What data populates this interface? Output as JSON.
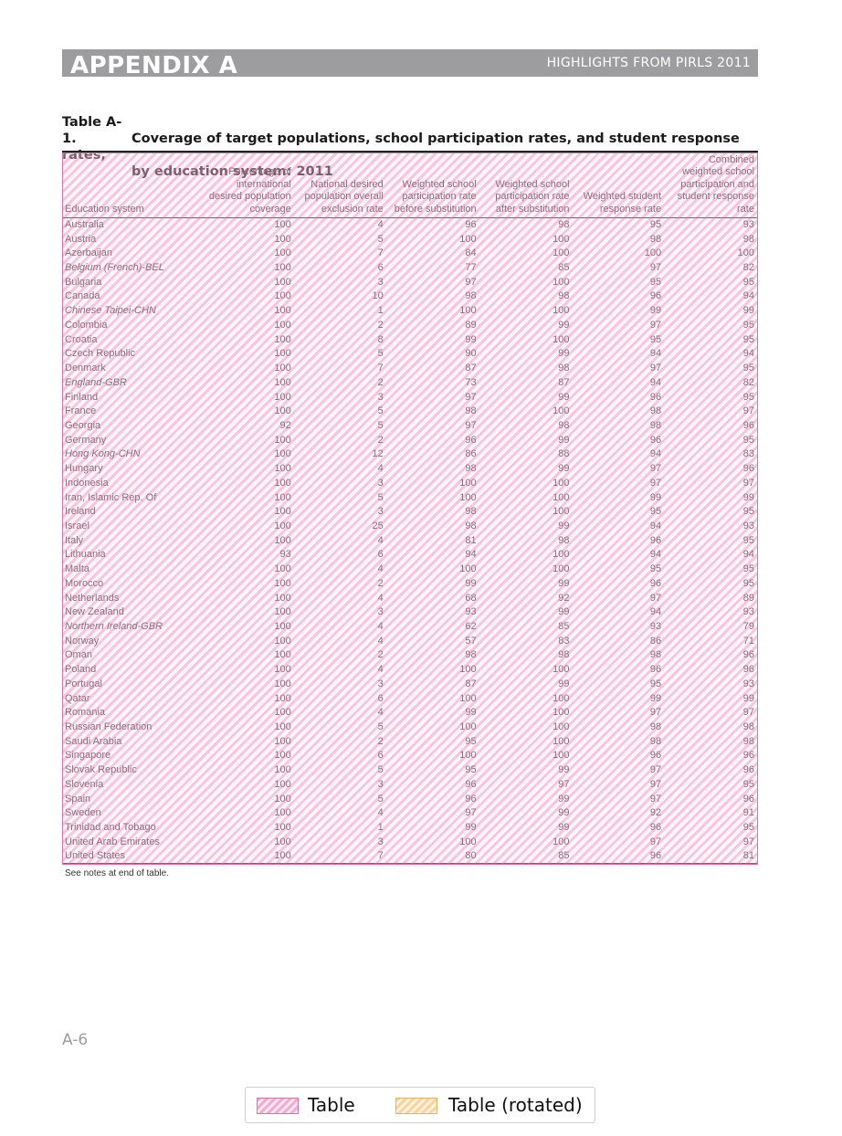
{
  "header": {
    "left": "APPENDIX A",
    "right": "HIGHLIGHTS FROM PIRLS 2011"
  },
  "caption": {
    "number": "Table A-1.",
    "line1": "Coverage of target populations, school participation rates, and student response rates,",
    "line2": "by education system: 2011"
  },
  "table": {
    "columns": [
      "Education system",
      "Percentage of international desired population coverage",
      "National desired population overall exclusion rate",
      "Weighted school participation rate before substitution",
      "Weighted school participation rate after substitution",
      "Weighted student response rate",
      "Combined weighted school participation and student response rate"
    ],
    "rows": [
      {
        "name": "Australia",
        "italic": false,
        "values": [
          "100",
          "4",
          "96",
          "98",
          "95",
          "93"
        ]
      },
      {
        "name": "Austria",
        "italic": false,
        "values": [
          "100",
          "5",
          "100",
          "100",
          "98",
          "98"
        ]
      },
      {
        "name": "Azerbaijan",
        "italic": false,
        "values": [
          "100",
          "7",
          "84",
          "100",
          "100",
          "100"
        ]
      },
      {
        "name": "Belgium (French)-BEL",
        "italic": true,
        "values": [
          "100",
          "6",
          "77",
          "85",
          "97",
          "82"
        ]
      },
      {
        "name": "Bulgaria",
        "italic": false,
        "values": [
          "100",
          "3",
          "97",
          "100",
          "95",
          "95"
        ]
      },
      {
        "name": "Canada",
        "italic": false,
        "values": [
          "100",
          "10",
          "98",
          "98",
          "96",
          "94"
        ]
      },
      {
        "name": "Chinese Taipei-CHN",
        "italic": true,
        "values": [
          "100",
          "1",
          "100",
          "100",
          "99",
          "99"
        ]
      },
      {
        "name": "Colombia",
        "italic": false,
        "values": [
          "100",
          "2",
          "89",
          "99",
          "97",
          "95"
        ]
      },
      {
        "name": "Croatia",
        "italic": false,
        "values": [
          "100",
          "8",
          "99",
          "100",
          "95",
          "95"
        ]
      },
      {
        "name": "Czech Republic",
        "italic": false,
        "values": [
          "100",
          "5",
          "90",
          "99",
          "94",
          "94"
        ]
      },
      {
        "name": "Denmark",
        "italic": false,
        "values": [
          "100",
          "7",
          "87",
          "98",
          "97",
          "95"
        ]
      },
      {
        "name": "England-GBR",
        "italic": true,
        "values": [
          "100",
          "2",
          "73",
          "87",
          "94",
          "82"
        ]
      },
      {
        "name": "Finland",
        "italic": false,
        "values": [
          "100",
          "3",
          "97",
          "99",
          "96",
          "95"
        ]
      },
      {
        "name": "France",
        "italic": false,
        "values": [
          "100",
          "5",
          "98",
          "100",
          "98",
          "97"
        ]
      },
      {
        "name": "Georgia",
        "italic": false,
        "values": [
          "92",
          "5",
          "97",
          "98",
          "98",
          "96"
        ]
      },
      {
        "name": "Germany",
        "italic": false,
        "values": [
          "100",
          "2",
          "96",
          "99",
          "96",
          "95"
        ]
      },
      {
        "name": "Hong Kong-CHN",
        "italic": true,
        "values": [
          "100",
          "12",
          "86",
          "88",
          "94",
          "83"
        ]
      },
      {
        "name": "Hungary",
        "italic": false,
        "values": [
          "100",
          "4",
          "98",
          "99",
          "97",
          "96"
        ]
      },
      {
        "name": "Indonesia",
        "italic": false,
        "values": [
          "100",
          "3",
          "100",
          "100",
          "97",
          "97"
        ]
      },
      {
        "name": "Iran, Islamic Rep. Of",
        "italic": false,
        "values": [
          "100",
          "5",
          "100",
          "100",
          "99",
          "99"
        ]
      },
      {
        "name": "Ireland",
        "italic": false,
        "values": [
          "100",
          "3",
          "98",
          "100",
          "95",
          "95"
        ]
      },
      {
        "name": "Israel",
        "italic": false,
        "values": [
          "100",
          "25",
          "98",
          "99",
          "94",
          "93"
        ]
      },
      {
        "name": "Italy",
        "italic": false,
        "values": [
          "100",
          "4",
          "81",
          "98",
          "96",
          "95"
        ]
      },
      {
        "name": "Lithuania",
        "italic": false,
        "values": [
          "93",
          "6",
          "94",
          "100",
          "94",
          "94"
        ]
      },
      {
        "name": "Malta",
        "italic": false,
        "values": [
          "100",
          "4",
          "100",
          "100",
          "95",
          "95"
        ]
      },
      {
        "name": "Morocco",
        "italic": false,
        "values": [
          "100",
          "2",
          "99",
          "99",
          "96",
          "95"
        ]
      },
      {
        "name": "Netherlands",
        "italic": false,
        "values": [
          "100",
          "4",
          "68",
          "92",
          "97",
          "89"
        ]
      },
      {
        "name": "New Zealand",
        "italic": false,
        "values": [
          "100",
          "3",
          "93",
          "99",
          "94",
          "93"
        ]
      },
      {
        "name": "Northern Ireland-GBR",
        "italic": true,
        "values": [
          "100",
          "4",
          "62",
          "85",
          "93",
          "79"
        ]
      },
      {
        "name": "Norway",
        "italic": false,
        "values": [
          "100",
          "4",
          "57",
          "83",
          "86",
          "71"
        ]
      },
      {
        "name": "Oman",
        "italic": false,
        "values": [
          "100",
          "2",
          "98",
          "98",
          "98",
          "96"
        ]
      },
      {
        "name": "Poland",
        "italic": false,
        "values": [
          "100",
          "4",
          "100",
          "100",
          "96",
          "96"
        ]
      },
      {
        "name": "Portugal",
        "italic": false,
        "values": [
          "100",
          "3",
          "87",
          "99",
          "95",
          "93"
        ]
      },
      {
        "name": "Qatar",
        "italic": false,
        "values": [
          "100",
          "6",
          "100",
          "100",
          "99",
          "99"
        ]
      },
      {
        "name": "Romania",
        "italic": false,
        "values": [
          "100",
          "4",
          "99",
          "100",
          "97",
          "97"
        ]
      },
      {
        "name": "Russian Federation",
        "italic": false,
        "values": [
          "100",
          "5",
          "100",
          "100",
          "98",
          "98"
        ]
      },
      {
        "name": "Saudi Arabia",
        "italic": false,
        "values": [
          "100",
          "2",
          "95",
          "100",
          "98",
          "98"
        ]
      },
      {
        "name": "Singapore",
        "italic": false,
        "values": [
          "100",
          "6",
          "100",
          "100",
          "96",
          "96"
        ]
      },
      {
        "name": "Slovak Republic",
        "italic": false,
        "values": [
          "100",
          "5",
          "95",
          "99",
          "97",
          "96"
        ]
      },
      {
        "name": "Slovenia",
        "italic": false,
        "values": [
          "100",
          "3",
          "96",
          "97",
          "97",
          "95"
        ]
      },
      {
        "name": "Spain",
        "italic": false,
        "values": [
          "100",
          "5",
          "96",
          "99",
          "97",
          "96"
        ]
      },
      {
        "name": "Sweden",
        "italic": false,
        "values": [
          "100",
          "4",
          "97",
          "99",
          "92",
          "91"
        ]
      },
      {
        "name": "Trinidad and Tobago",
        "italic": false,
        "values": [
          "100",
          "1",
          "99",
          "99",
          "96",
          "95"
        ]
      },
      {
        "name": "United Arab Emirates",
        "italic": false,
        "values": [
          "100",
          "3",
          "100",
          "100",
          "97",
          "97"
        ]
      },
      {
        "name": "United States",
        "italic": false,
        "values": [
          "100",
          "7",
          "80",
          "85",
          "96",
          "81"
        ]
      }
    ]
  },
  "note": "See notes at end of table.",
  "page_number": "A-6",
  "legend": {
    "items": [
      {
        "label": "Table",
        "color": "#f496c3"
      },
      {
        "label": "Table (rotated)",
        "color": "#fac882"
      }
    ]
  }
}
